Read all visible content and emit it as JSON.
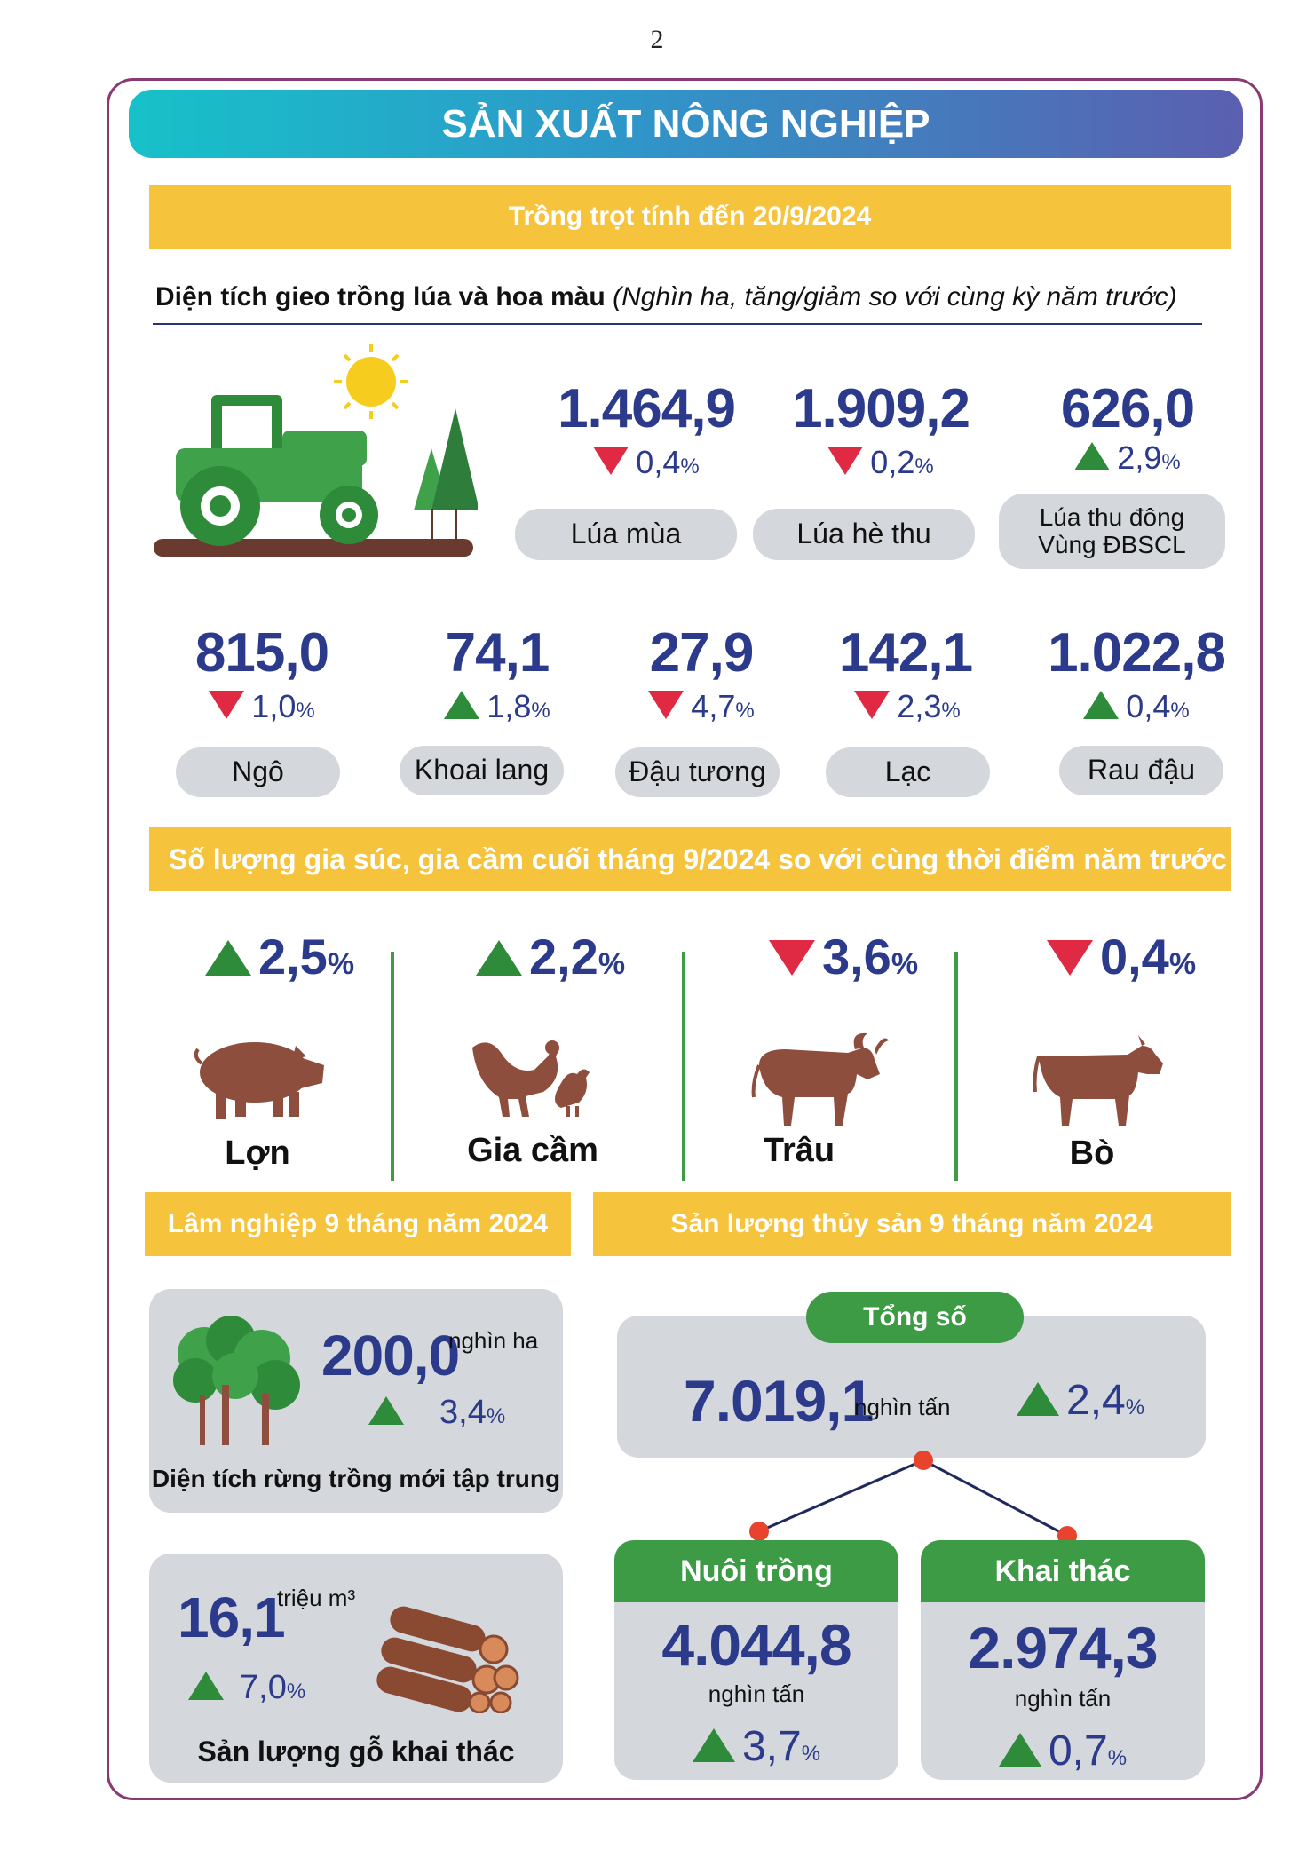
{
  "page_number": "2",
  "title": "SẢN XUẤT NÔNG NGHIỆP",
  "crop": {
    "band": "Trồng trọt tính đến 20/9/2024",
    "heading_bold": "Diện tích gieo trồng lúa và hoa màu",
    "heading_italic": "(Nghìn ha, tăng/giảm so với cùng kỳ năm trước)",
    "row1": [
      {
        "value": "1.464,9",
        "direction": "down",
        "change": "0,4",
        "pct": "%",
        "label": "Lúa mùa"
      },
      {
        "value": "1.909,2",
        "direction": "down",
        "change": "0,2",
        "pct": "%",
        "label": "Lúa hè thu"
      },
      {
        "value": "626,0",
        "direction": "up",
        "change": "2,9",
        "pct": "%",
        "label": "Lúa thu đông\nVùng ĐBSCL"
      }
    ],
    "row2": [
      {
        "value": "815,0",
        "direction": "down",
        "change": "1,0",
        "pct": "%",
        "label": "Ngô"
      },
      {
        "value": "74,1",
        "direction": "up",
        "change": "1,8",
        "pct": "%",
        "label": "Khoai lang"
      },
      {
        "value": "27,9",
        "direction": "down",
        "change": "4,7",
        "pct": "%",
        "label": "Đậu tương"
      },
      {
        "value": "142,1",
        "direction": "down",
        "change": "2,3",
        "pct": "%",
        "label": "Lạc"
      },
      {
        "value": "1.022,8",
        "direction": "up",
        "change": "0,4",
        "pct": "%",
        "label": "Rau đậu"
      }
    ]
  },
  "livestock": {
    "band": "Số lượng gia súc, gia cầm cuối tháng 9/2024 so với cùng thời điểm năm trước",
    "items": [
      {
        "direction": "up",
        "change": "2,5",
        "pct": "%",
        "label": "Lợn",
        "icon": "pig-icon"
      },
      {
        "direction": "up",
        "change": "2,2",
        "pct": "%",
        "label": "Gia cầm",
        "icon": "poultry-icon"
      },
      {
        "direction": "down",
        "change": "3,6",
        "pct": "%",
        "label": "Trâu",
        "icon": "buffalo-icon"
      },
      {
        "direction": "down",
        "change": "0,4",
        "pct": "%",
        "label": "Bò",
        "icon": "cow-icon"
      }
    ]
  },
  "forestry": {
    "band": "Lâm nghiệp 9 tháng năm 2024",
    "forest": {
      "value": "200,0",
      "unit": "nghìn ha",
      "direction": "up",
      "change": "3,4",
      "pct": "%",
      "label": "Diện tích rừng trồng mới tập trung"
    },
    "timber": {
      "value": "16,1",
      "unit": "triệu m³",
      "direction": "up",
      "change": "7,0",
      "pct": "%",
      "label": "Sản lượng gỗ khai thác"
    }
  },
  "fishery": {
    "band": "Sản lượng thủy sản 9 tháng năm 2024",
    "total": {
      "label": "Tổng số",
      "value": "7.019,1",
      "unit": "nghìn tấn",
      "direction": "up",
      "change": "2,4",
      "pct": "%"
    },
    "farming": {
      "label": "Nuôi trồng",
      "value": "4.044,8",
      "unit": "nghìn tấn",
      "direction": "up",
      "change": "3,7",
      "pct": "%"
    },
    "catching": {
      "label": "Khai thác",
      "value": "2.974,3",
      "unit": "nghìn tấn",
      "direction": "up",
      "change": "0,7",
      "pct": "%"
    }
  },
  "colors": {
    "up": "#2e8b3a",
    "down": "#e02a43",
    "value": "#2b3a8a",
    "band": "#f6c33c",
    "frame": "#8a3a72",
    "green_head": "#3d9a45"
  }
}
